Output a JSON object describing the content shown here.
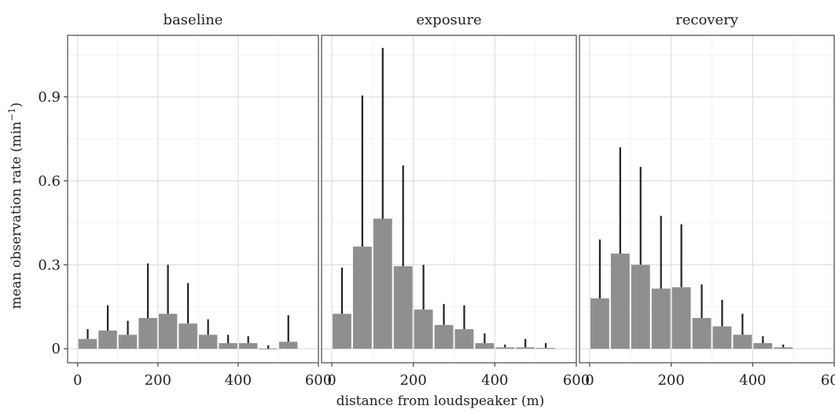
{
  "chart_data": {
    "type": "bar",
    "ylabel_main": "mean observation rate (min",
    "ylabel_sup": "−1",
    "ylabel_close": ")",
    "xlabel": "distance from loudspeaker (m)",
    "xlim": [
      -25,
      600
    ],
    "ylim": [
      -0.05,
      1.12
    ],
    "x_ticks": [
      0,
      200,
      400,
      600
    ],
    "x_tick_labels": [
      "0",
      "200",
      "400",
      "600"
    ],
    "y_ticks": [
      0,
      0.3,
      0.6,
      0.9
    ],
    "y_tick_labels": [
      "0",
      "0.3",
      "0.6",
      "0.9"
    ],
    "bar_color": "#8f8f91",
    "errorbar_color": "#222222",
    "grid": true,
    "panels": [
      {
        "title": "baseline",
        "bins": [
          25,
          75,
          125,
          175,
          225,
          275,
          325,
          375,
          425,
          475,
          525
        ],
        "values": [
          0.035,
          0.065,
          0.05,
          0.11,
          0.125,
          0.09,
          0.05,
          0.02,
          0.02,
          0.0,
          0.025
        ],
        "upper": [
          0.07,
          0.155,
          0.1,
          0.305,
          0.3,
          0.235,
          0.105,
          0.05,
          0.045,
          0.012,
          0.12
        ]
      },
      {
        "title": "exposure",
        "bins": [
          25,
          75,
          125,
          175,
          225,
          275,
          325,
          375,
          425,
          475,
          525
        ],
        "values": [
          0.125,
          0.365,
          0.465,
          0.295,
          0.14,
          0.085,
          0.07,
          0.02,
          0.005,
          0.005,
          0.003
        ],
        "upper": [
          0.29,
          0.905,
          1.075,
          0.655,
          0.3,
          0.16,
          0.155,
          0.055,
          0.015,
          0.035,
          0.02
        ]
      },
      {
        "title": "recovery",
        "bins": [
          25,
          75,
          125,
          175,
          225,
          275,
          325,
          375,
          425,
          475
        ],
        "values": [
          0.18,
          0.34,
          0.3,
          0.215,
          0.22,
          0.11,
          0.08,
          0.05,
          0.02,
          0.005
        ],
        "upper": [
          0.39,
          0.72,
          0.65,
          0.475,
          0.445,
          0.23,
          0.175,
          0.125,
          0.045,
          0.015
        ]
      }
    ]
  }
}
